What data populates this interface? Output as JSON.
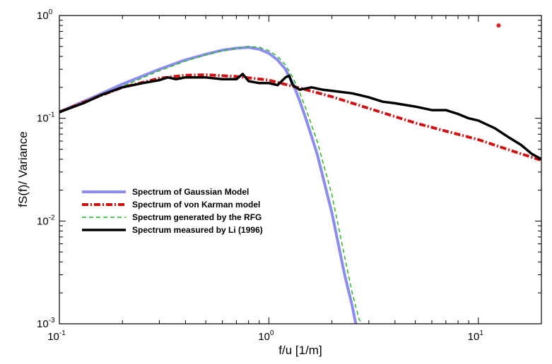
{
  "chart_data": {
    "type": "line",
    "xscale": "log",
    "yscale": "log",
    "xlim": [
      0.1,
      20
    ],
    "ylim": [
      0.001,
      1
    ],
    "xlabel": "f/u [1/m]",
    "ylabel": "fS(f)/ Variance",
    "x_ticks": [
      {
        "base": "10",
        "exp": "-1",
        "value": 0.1
      },
      {
        "base": "10",
        "exp": "0",
        "value": 1
      },
      {
        "base": "10",
        "exp": "1",
        "value": 10
      }
    ],
    "y_ticks": [
      {
        "base": "10",
        "exp": "-3",
        "value": 0.001
      },
      {
        "base": "10",
        "exp": "-2",
        "value": 0.01
      },
      {
        "base": "10",
        "exp": "-1",
        "value": 0.1
      },
      {
        "base": "10",
        "exp": "0",
        "value": 1
      }
    ],
    "grid": false,
    "legend_position": "center-left",
    "series": [
      {
        "name": "Spectrum of Gaussian Model",
        "color": "#8c8cf0",
        "style": "thick",
        "x": [
          0.1,
          0.15,
          0.2,
          0.3,
          0.4,
          0.5,
          0.6,
          0.7,
          0.8,
          0.9,
          1.0,
          1.1,
          1.2,
          1.3,
          1.4,
          1.5,
          1.7,
          2.0,
          2.3,
          2.5,
          2.6
        ],
        "y": [
          0.115,
          0.165,
          0.215,
          0.3,
          0.37,
          0.42,
          0.46,
          0.48,
          0.49,
          0.47,
          0.43,
          0.37,
          0.3,
          0.22,
          0.15,
          0.1,
          0.045,
          0.012,
          0.003,
          0.0015,
          0.001
        ]
      },
      {
        "name": "Spectrum of von Karman model",
        "color": "#d01010",
        "style": "dash-dot",
        "x": [
          0.1,
          0.15,
          0.2,
          0.3,
          0.4,
          0.5,
          0.7,
          1.0,
          1.5,
          2.0,
          3.0,
          5.0,
          7.0,
          10.0,
          15.0,
          20.0
        ],
        "y": [
          0.115,
          0.16,
          0.2,
          0.245,
          0.262,
          0.265,
          0.255,
          0.235,
          0.19,
          0.162,
          0.125,
          0.09,
          0.075,
          0.062,
          0.047,
          0.039
        ]
      },
      {
        "name": "Spectrum generated by the RFG",
        "color": "#22bb22",
        "style": "dashed",
        "x": [
          0.1,
          0.15,
          0.2,
          0.3,
          0.4,
          0.5,
          0.6,
          0.7,
          0.8,
          0.9,
          1.0,
          1.1,
          1.2,
          1.3,
          1.4,
          1.5,
          1.7,
          2.0,
          2.3,
          2.5,
          2.7,
          2.8
        ],
        "y": [
          0.112,
          0.16,
          0.205,
          0.29,
          0.36,
          0.415,
          0.455,
          0.48,
          0.5,
          0.49,
          0.455,
          0.4,
          0.33,
          0.25,
          0.18,
          0.125,
          0.06,
          0.018,
          0.0045,
          0.002,
          0.0011,
          0.001
        ]
      },
      {
        "name": "Spectrum measured by Li (1996)",
        "color": "#000000",
        "style": "solid-thick",
        "x": [
          0.1,
          0.13,
          0.16,
          0.2,
          0.25,
          0.3,
          0.33,
          0.36,
          0.4,
          0.5,
          0.6,
          0.7,
          0.75,
          0.8,
          0.9,
          1.0,
          1.1,
          1.2,
          1.25,
          1.3,
          1.4,
          1.6,
          1.8,
          2.0,
          2.5,
          3.0,
          3.5,
          4.0,
          5.0,
          6.0,
          7.0,
          8.0,
          9.0,
          10.0,
          12.0,
          14.0,
          16.0,
          18.0,
          20.0
        ],
        "y": [
          0.115,
          0.14,
          0.17,
          0.2,
          0.22,
          0.235,
          0.25,
          0.24,
          0.25,
          0.25,
          0.24,
          0.24,
          0.27,
          0.23,
          0.22,
          0.22,
          0.21,
          0.25,
          0.26,
          0.21,
          0.19,
          0.2,
          0.19,
          0.185,
          0.175,
          0.16,
          0.145,
          0.14,
          0.13,
          0.12,
          0.12,
          0.11,
          0.1,
          0.095,
          0.08,
          0.065,
          0.055,
          0.045,
          0.04
        ]
      }
    ],
    "annotation_point": {
      "x": 12.5,
      "y": 0.8,
      "color": "#e02020"
    }
  }
}
